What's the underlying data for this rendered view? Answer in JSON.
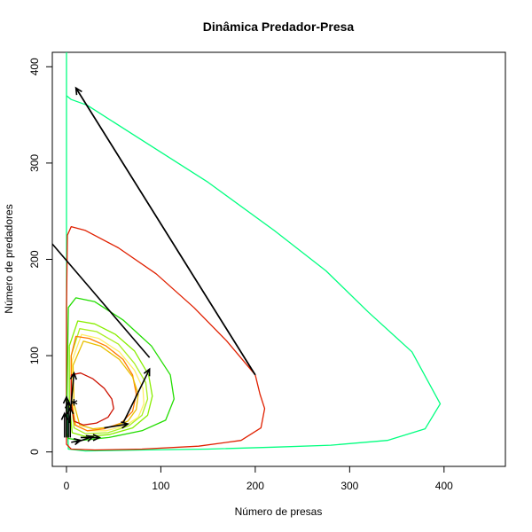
{
  "chart_data": {
    "type": "line",
    "title": "Dinâmica Predador-Presa",
    "xlabel": "Número de presas",
    "ylabel": "Número de predadores",
    "xlim": [
      -15,
      465
    ],
    "ylim": [
      -15,
      415
    ],
    "x_ticks": [
      0,
      100,
      200,
      300,
      400
    ],
    "y_ticks": [
      0,
      100,
      200,
      300,
      400
    ],
    "grid": false,
    "legend": "none",
    "equilibrium_point": {
      "x": 8,
      "y": 50,
      "marker": "*"
    },
    "trajectories": [
      {
        "color": "#00ff7f",
        "points": [
          [
            0,
            415
          ],
          [
            0,
            370
          ],
          [
            5,
            366
          ],
          [
            22,
            360
          ],
          [
            70,
            330
          ],
          [
            150,
            280
          ],
          [
            220,
            230
          ],
          [
            275,
            188
          ],
          [
            320,
            145
          ],
          [
            366,
            104
          ],
          [
            396,
            50
          ],
          [
            380,
            24
          ],
          [
            340,
            12
          ],
          [
            280,
            7
          ],
          [
            220,
            5
          ],
          [
            150,
            3
          ],
          [
            80,
            2
          ],
          [
            20,
            1
          ],
          [
            2,
            3
          ],
          [
            0,
            60
          ],
          [
            0,
            415
          ]
        ]
      },
      {
        "color": "#e02000",
        "points": [
          [
            200,
            80
          ],
          [
            170,
            115
          ],
          [
            135,
            150
          ],
          [
            95,
            185
          ],
          [
            55,
            212
          ],
          [
            20,
            230
          ],
          [
            5,
            234
          ],
          [
            1,
            225
          ],
          [
            0,
            150
          ],
          [
            0,
            60
          ],
          [
            0,
            8
          ],
          [
            5,
            3
          ],
          [
            30,
            2
          ],
          [
            80,
            3
          ],
          [
            140,
            6
          ],
          [
            185,
            12
          ],
          [
            206,
            25
          ],
          [
            210,
            45
          ],
          [
            205,
            60
          ],
          [
            200,
            80
          ]
        ]
      },
      {
        "color": "#22dd00",
        "points": [
          [
            0,
            20
          ],
          [
            2,
            150
          ],
          [
            10,
            160
          ],
          [
            30,
            156
          ],
          [
            60,
            137
          ],
          [
            90,
            110
          ],
          [
            110,
            80
          ],
          [
            114,
            55
          ],
          [
            105,
            33
          ],
          [
            80,
            22
          ],
          [
            45,
            15
          ],
          [
            15,
            12
          ],
          [
            2,
            14
          ],
          [
            0,
            20
          ]
        ]
      },
      {
        "color": "#88ee00",
        "points": [
          [
            3,
            110
          ],
          [
            12,
            136
          ],
          [
            30,
            133
          ],
          [
            52,
            122
          ],
          [
            72,
            105
          ],
          [
            87,
            80
          ],
          [
            91,
            58
          ],
          [
            86,
            38
          ],
          [
            70,
            25
          ],
          [
            45,
            18
          ],
          [
            20,
            16
          ],
          [
            6,
            20
          ],
          [
            3,
            50
          ],
          [
            3,
            110
          ]
        ]
      },
      {
        "color": "#aaee22",
        "points": [
          [
            5,
            100
          ],
          [
            14,
            128
          ],
          [
            32,
            125
          ],
          [
            55,
            112
          ],
          [
            72,
            92
          ],
          [
            84,
            72
          ],
          [
            86,
            55
          ],
          [
            80,
            38
          ],
          [
            66,
            27
          ],
          [
            44,
            20
          ],
          [
            20,
            19
          ],
          [
            8,
            25
          ],
          [
            5,
            55
          ],
          [
            5,
            100
          ]
        ]
      },
      {
        "color": "#ffee66",
        "points": [
          [
            6,
            95
          ],
          [
            16,
            122
          ],
          [
            34,
            118
          ],
          [
            56,
            104
          ],
          [
            72,
            85
          ],
          [
            81,
            66
          ],
          [
            82,
            50
          ],
          [
            76,
            36
          ],
          [
            62,
            27
          ],
          [
            42,
            22
          ],
          [
            22,
            22
          ],
          [
            10,
            28
          ],
          [
            6,
            55
          ],
          [
            6,
            95
          ]
        ]
      },
      {
        "color": "#ff7a00",
        "points": [
          [
            5,
            100
          ],
          [
            10,
            120
          ],
          [
            24,
            118
          ],
          [
            42,
            110
          ],
          [
            60,
            96
          ],
          [
            70,
            80
          ],
          [
            74,
            60
          ],
          [
            70,
            42
          ],
          [
            58,
            30
          ],
          [
            40,
            24
          ],
          [
            22,
            22
          ],
          [
            9,
            28
          ],
          [
            5,
            55
          ],
          [
            5,
            100
          ]
        ]
      },
      {
        "color": "#e8c000",
        "points": [
          [
            7,
            90
          ],
          [
            18,
            115
          ],
          [
            36,
            110
          ],
          [
            56,
            96
          ],
          [
            70,
            78
          ],
          [
            76,
            60
          ],
          [
            74,
            44
          ],
          [
            65,
            32
          ],
          [
            48,
            26
          ],
          [
            28,
            24
          ],
          [
            14,
            28
          ],
          [
            8,
            50
          ],
          [
            7,
            90
          ]
        ]
      },
      {
        "color": "#cc1100",
        "points": [
          [
            5,
            80
          ],
          [
            15,
            82
          ],
          [
            28,
            76
          ],
          [
            40,
            66
          ],
          [
            48,
            55
          ],
          [
            50,
            45
          ],
          [
            44,
            36
          ],
          [
            32,
            30
          ],
          [
            18,
            28
          ],
          [
            8,
            32
          ],
          [
            5,
            50
          ],
          [
            5,
            80
          ]
        ]
      }
    ],
    "black_segments": [
      [
        [
          -15,
          216
        ],
        [
          88,
          98
        ]
      ],
      [
        [
          200,
          80
        ],
        [
          10,
          378
        ]
      ]
    ],
    "arrows": [
      [
        [
          200,
          80
        ],
        [
          10,
          378
        ]
      ],
      [
        [
          60,
          30
        ],
        [
          88,
          86
        ]
      ],
      [
        [
          40,
          25
        ],
        [
          65,
          29
        ]
      ],
      [
        [
          15,
          15
        ],
        [
          35,
          15
        ]
      ],
      [
        [
          5,
          10
        ],
        [
          15,
          12
        ]
      ],
      [
        [
          3,
          30
        ],
        [
          8,
          82
        ]
      ],
      [
        [
          0,
          15
        ],
        [
          0,
          57
        ]
      ],
      [
        [
          2,
          15
        ],
        [
          2,
          52
        ]
      ],
      [
        [
          4,
          15
        ],
        [
          4,
          46
        ]
      ],
      [
        [
          -2,
          15
        ],
        [
          -2,
          40
        ]
      ],
      [
        [
          10,
          10
        ],
        [
          28,
          16
        ]
      ]
    ]
  }
}
